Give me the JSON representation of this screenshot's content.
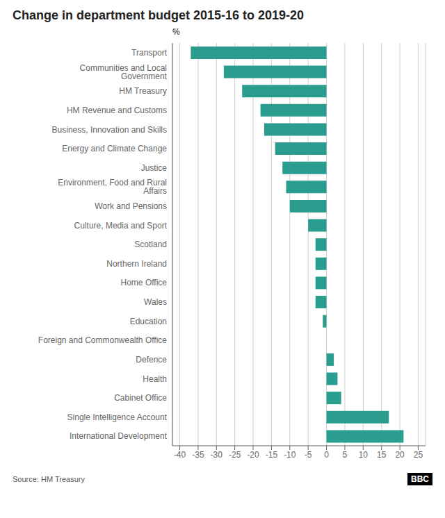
{
  "chart_data": {
    "type": "bar",
    "orientation": "horizontal",
    "title": "Change in department budget 2015-16 to 2019-20",
    "annotations": [
      "%",
      "Source: HM Treasury",
      "BBC"
    ],
    "categories": [
      "International Development",
      "Single Intelligence Account",
      "Cabinet Office",
      "Health",
      "Defence",
      "Foreign and Commonwealth Office",
      "Education",
      "Wales",
      "Home Office",
      "Northern Ireland",
      "Scotland",
      "Culture, Media and Sport",
      "Work and Pensions",
      "Environment, Food and Rural Affairs",
      "Justice",
      "Energy and Climate Change",
      "Business, Innovation and Skills",
      "HM Revenue and Customs",
      "HM Treasury",
      "Communities and Local Government",
      "Transport"
    ],
    "values": [
      21,
      17,
      4,
      3,
      2,
      0,
      -1,
      -3,
      -3,
      -3,
      -3,
      -5,
      -10,
      -11,
      -12,
      -14,
      -17,
      -18,
      -23,
      -28,
      -37
    ],
    "color": "#2a9d8f",
    "xlim": [
      -42,
      27
    ],
    "xticks": [
      -40,
      -35,
      -30,
      -25,
      -20,
      -15,
      -10,
      -5,
      0,
      5,
      10,
      15,
      20,
      25
    ],
    "grid": true
  }
}
